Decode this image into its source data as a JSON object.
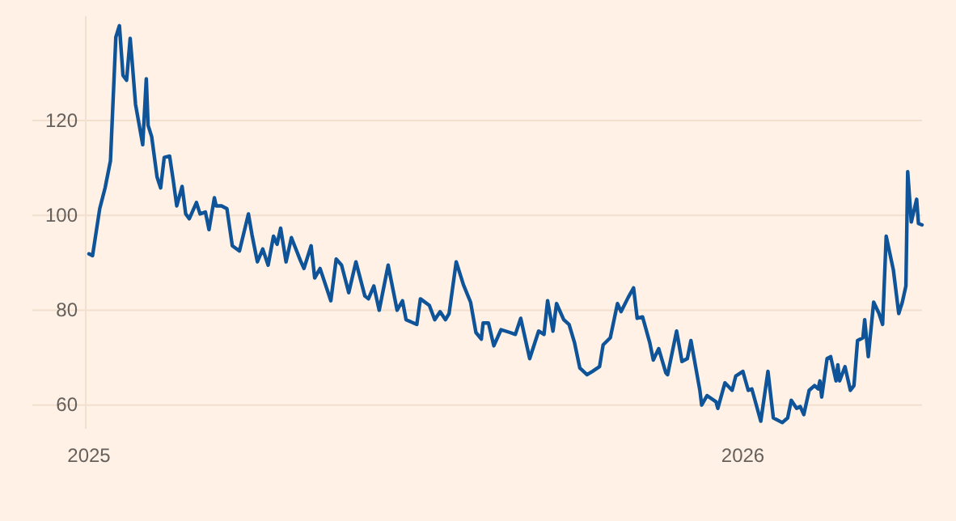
{
  "chart_data": {
    "type": "line",
    "x": [
      "2025-01-01",
      "2025-01-03",
      "2025-01-07",
      "2025-01-10",
      "2025-01-13",
      "2025-01-16",
      "2025-01-18",
      "2025-01-20",
      "2025-01-22",
      "2025-01-24",
      "2025-01-25",
      "2025-01-27",
      "2025-01-31",
      "2025-02-02",
      "2025-02-03",
      "2025-02-05",
      "2025-02-08",
      "2025-02-10",
      "2025-02-12",
      "2025-02-15",
      "2025-02-17",
      "2025-02-19",
      "2025-02-22",
      "2025-02-24",
      "2025-02-26",
      "2025-03-02",
      "2025-03-04",
      "2025-03-07",
      "2025-03-09",
      "2025-03-12",
      "2025-03-13",
      "2025-03-16",
      "2025-03-19",
      "2025-03-22",
      "2025-03-26",
      "2025-03-31",
      "2025-04-02",
      "2025-04-05",
      "2025-04-08",
      "2025-04-11",
      "2025-04-14",
      "2025-04-16",
      "2025-04-18",
      "2025-04-21",
      "2025-04-24",
      "2025-04-29",
      "2025-05-01",
      "2025-05-05",
      "2025-05-07",
      "2025-05-10",
      "2025-05-16",
      "2025-05-19",
      "2025-05-22",
      "2025-05-26",
      "2025-05-30",
      "2025-06-04",
      "2025-06-06",
      "2025-06-09",
      "2025-06-12",
      "2025-06-17",
      "2025-06-22",
      "2025-06-25",
      "2025-06-27",
      "2025-07-03",
      "2025-07-05",
      "2025-07-10",
      "2025-07-13",
      "2025-07-16",
      "2025-07-19",
      "2025-07-21",
      "2025-07-25",
      "2025-07-29",
      "2025-08-02",
      "2025-08-05",
      "2025-08-08",
      "2025-08-09",
      "2025-08-12",
      "2025-08-15",
      "2025-08-19",
      "2025-08-24",
      "2025-08-27",
      "2025-08-30",
      "2025-09-04",
      "2025-09-09",
      "2025-09-12",
      "2025-09-14",
      "2025-09-17",
      "2025-09-19",
      "2025-09-23",
      "2025-09-26",
      "2025-09-29",
      "2025-10-02",
      "2025-10-06",
      "2025-10-09",
      "2025-10-13",
      "2025-10-15",
      "2025-10-19",
      "2025-10-23",
      "2025-10-25",
      "2025-10-29",
      "2025-11-01",
      "2025-11-03",
      "2025-11-06",
      "2025-11-10",
      "2025-11-12",
      "2025-11-15",
      "2025-11-19",
      "2025-11-20",
      "2025-11-25",
      "2025-11-28",
      "2025-12-01",
      "2025-12-03",
      "2025-12-08",
      "2025-12-09",
      "2025-12-12",
      "2025-12-17",
      "2025-12-18",
      "2025-12-22",
      "2025-12-26",
      "2025-12-28",
      "2026-01-01",
      "2026-01-04",
      "2026-01-06",
      "2026-01-11",
      "2026-01-15",
      "2026-01-18",
      "2026-01-23",
      "2026-01-26",
      "2026-01-28",
      "2026-01-31",
      "2026-02-02",
      "2026-02-04",
      "2026-02-07",
      "2026-02-10",
      "2026-02-12",
      "2026-02-13",
      "2026-02-14",
      "2026-02-17",
      "2026-02-19",
      "2026-02-22",
      "2026-02-23",
      "2026-02-24",
      "2026-02-27",
      "2026-03-02",
      "2026-03-04",
      "2026-03-06",
      "2026-03-09",
      "2026-03-10",
      "2026-03-12",
      "2026-03-15",
      "2026-03-18",
      "2026-03-20",
      "2026-03-22",
      "2026-03-26",
      "2026-03-29",
      "2026-03-31",
      "2026-04-02",
      "2026-04-03",
      "2026-04-05",
      "2026-04-08",
      "2026-04-09",
      "2026-04-11"
    ],
    "series": [
      {
        "color": "#0f5499",
        "values": [
          91.9,
          91.5,
          101.4,
          105.8,
          111.5,
          137.6,
          140,
          129.5,
          128.5,
          137.3,
          132.9,
          123.4,
          114.9,
          128.8,
          119,
          116.6,
          108.1,
          105.8,
          112.2,
          112.5,
          107.5,
          102,
          106.1,
          100.3,
          99.3,
          102.7,
          100.3,
          100.7,
          97,
          103.7,
          102,
          102,
          101.4,
          93.6,
          92.5,
          100.3,
          95.9,
          90.2,
          92.9,
          89.5,
          95.6,
          93.9,
          97.3,
          90.2,
          95.3,
          90.5,
          88.8,
          93.6,
          86.8,
          88.8,
          82,
          90.8,
          89.5,
          83.7,
          90.2,
          83,
          82.4,
          85.1,
          80,
          89.5,
          80,
          82,
          78,
          77,
          82.4,
          81,
          78,
          79.7,
          78,
          79.3,
          90.2,
          85.4,
          81.7,
          75.3,
          73.9,
          77.3,
          77.3,
          72.5,
          75.9,
          75.3,
          74.9,
          78.3,
          69.8,
          75.6,
          74.9,
          82,
          75.6,
          81.4,
          78,
          77,
          73.2,
          67.8,
          66.4,
          67.1,
          68.1,
          72.7,
          74.2,
          81.4,
          79.7,
          82.7,
          84.7,
          78.3,
          78.6,
          73.2,
          69.5,
          71.9,
          66.8,
          66.4,
          75.6,
          69.2,
          69.8,
          73.6,
          63.1,
          60,
          62,
          60.7,
          59.3,
          64.7,
          63.1,
          66.1,
          67.1,
          63.1,
          63.4,
          56.6,
          67.1,
          57.3,
          56.3,
          57.3,
          61,
          59.3,
          59.7,
          58,
          63.1,
          64.1,
          63.4,
          65.1,
          61.7,
          69.8,
          70.2,
          65.1,
          68.5,
          65.1,
          68.1,
          63.1,
          64.1,
          73.6,
          74.2,
          78,
          70.2,
          81.7,
          79.3,
          77,
          95.6,
          88.5,
          79.3,
          81.7,
          85.1,
          109.2,
          98.6,
          103.4,
          98.3,
          98
        ]
      }
    ],
    "xlim": [
      "2025-01-01",
      "2026-04-11"
    ],
    "xticks": [
      {
        "value": "2025-01-01",
        "label": "2025"
      },
      {
        "value": "2026-01-01",
        "label": "2026"
      }
    ],
    "ylim": [
      55,
      142
    ],
    "yticks": [
      60,
      80,
      100,
      120
    ],
    "grid": "y",
    "marker": "none",
    "line_style": "solid"
  }
}
